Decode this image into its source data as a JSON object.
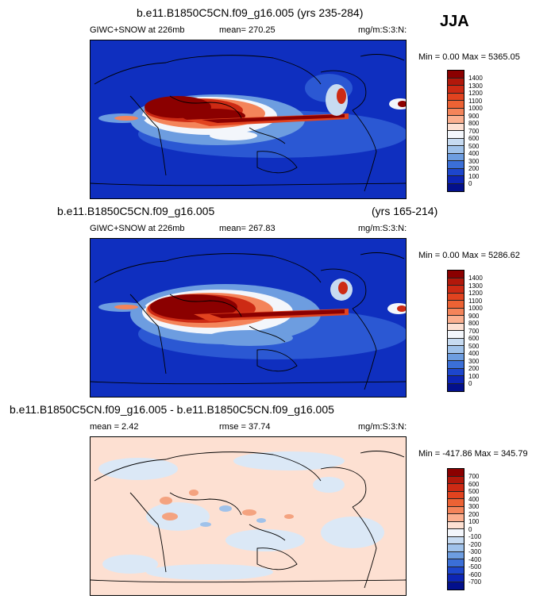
{
  "season": "JJA",
  "panels": [
    {
      "title": "b.e11.B1850C5CN.f09_g16.005 (yrs 235-284)",
      "title_right": "",
      "left_label": "GIWC+SNOW at 226mb",
      "center_label": "mean= 270.25",
      "right_label": "mg/m:S:3:N:",
      "minmax": "Min =   0.00 Max = 5365.05",
      "levels": [
        "1400",
        "1300",
        "1200",
        "1100",
        "1000",
        "900",
        "800",
        "700",
        "600",
        "500",
        "400",
        "300",
        "200",
        "100",
        "0"
      ],
      "colors": [
        "#8b0000",
        "#b2180b",
        "#cd2a14",
        "#e1431f",
        "#ec6234",
        "#f4845a",
        "#fbaf8f",
        "#fde0d2",
        "#f3f6fb",
        "#c7dbf1",
        "#a0c2ea",
        "#6d9de0",
        "#3b6fd7",
        "#1d46cc",
        "#0d25b5",
        "#03108c"
      ]
    },
    {
      "title": "b.e11.B1850C5CN.f09_g16.005",
      "title_right": "(yrs 165-214)",
      "left_label": "GIWC+SNOW at 226mb",
      "center_label": "mean= 267.83",
      "right_label": "mg/m:S:3:N:",
      "minmax": "Min =   0.00 Max = 5286.62",
      "levels": [
        "1400",
        "1300",
        "1200",
        "1100",
        "1000",
        "900",
        "800",
        "700",
        "600",
        "500",
        "400",
        "300",
        "200",
        "100",
        "0"
      ],
      "colors": [
        "#8b0000",
        "#b2180b",
        "#cd2a14",
        "#e1431f",
        "#ec6234",
        "#f4845a",
        "#fbaf8f",
        "#fde0d2",
        "#f3f6fb",
        "#c7dbf1",
        "#a0c2ea",
        "#6d9de0",
        "#3b6fd7",
        "#1d46cc",
        "#0d25b5",
        "#03108c"
      ]
    },
    {
      "title": "b.e11.B1850C5CN.f09_g16.005 - b.e11.B1850C5CN.f09_g16.005",
      "title_right": "",
      "left_label": "mean =  2.42",
      "center_label": "rmse =  37.74",
      "right_label": "mg/m:S:3:N:",
      "minmax": "Min = -417.86 Max = 345.79",
      "levels": [
        "700",
        "600",
        "500",
        "400",
        "300",
        "200",
        "100",
        "0",
        "-100",
        "-200",
        "-300",
        "-400",
        "-500",
        "-600",
        "-700"
      ],
      "colors": [
        "#8b0000",
        "#b2180b",
        "#cd2a14",
        "#e1431f",
        "#ec6234",
        "#f4845a",
        "#fbaf8f",
        "#fde0d2",
        "#f3f6fb",
        "#c7dbf1",
        "#a0c2ea",
        "#6d9de0",
        "#3b6fd7",
        "#1d46cc",
        "#0d25b5",
        "#03108c"
      ]
    }
  ]
}
